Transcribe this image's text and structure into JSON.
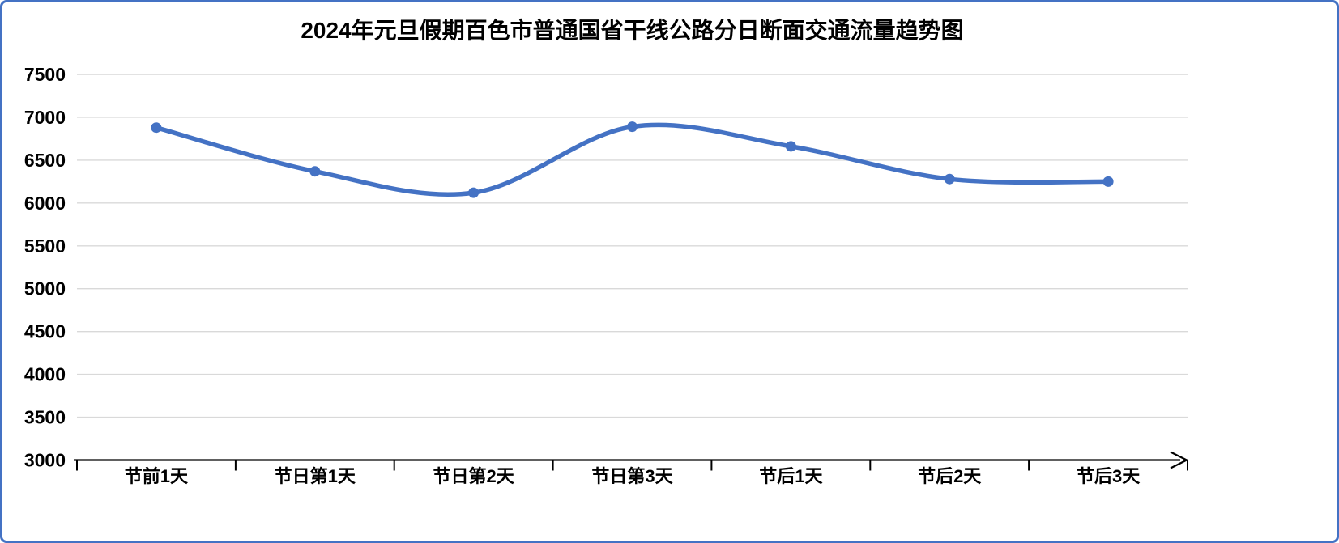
{
  "chart_data": {
    "type": "line",
    "title": "2024年元旦假期百色市普通国省干线公路分日断面交通流量趋势图",
    "categories": [
      "节前1天",
      "节日第1天",
      "节日第2天",
      "节日第3天",
      "节后1天",
      "节后2天",
      "节后3天"
    ],
    "values": [
      6880,
      6370,
      6120,
      6890,
      6660,
      6280,
      6250
    ],
    "ylim": [
      3000,
      7500
    ],
    "yticks": [
      3000,
      3500,
      4000,
      4500,
      5000,
      5500,
      6000,
      6500,
      7000,
      7500
    ],
    "xlabel": "",
    "ylabel": "",
    "grid": "horizontal",
    "legend": "none",
    "smooth": true,
    "marker": "circle",
    "colors": {
      "line": "#4472C4",
      "marker": "#4472C4",
      "gridline": "#D9D9D9",
      "axis": "#000000",
      "text": "#000000",
      "frame_border": "#4472C4",
      "background": "#FFFFFF"
    }
  }
}
